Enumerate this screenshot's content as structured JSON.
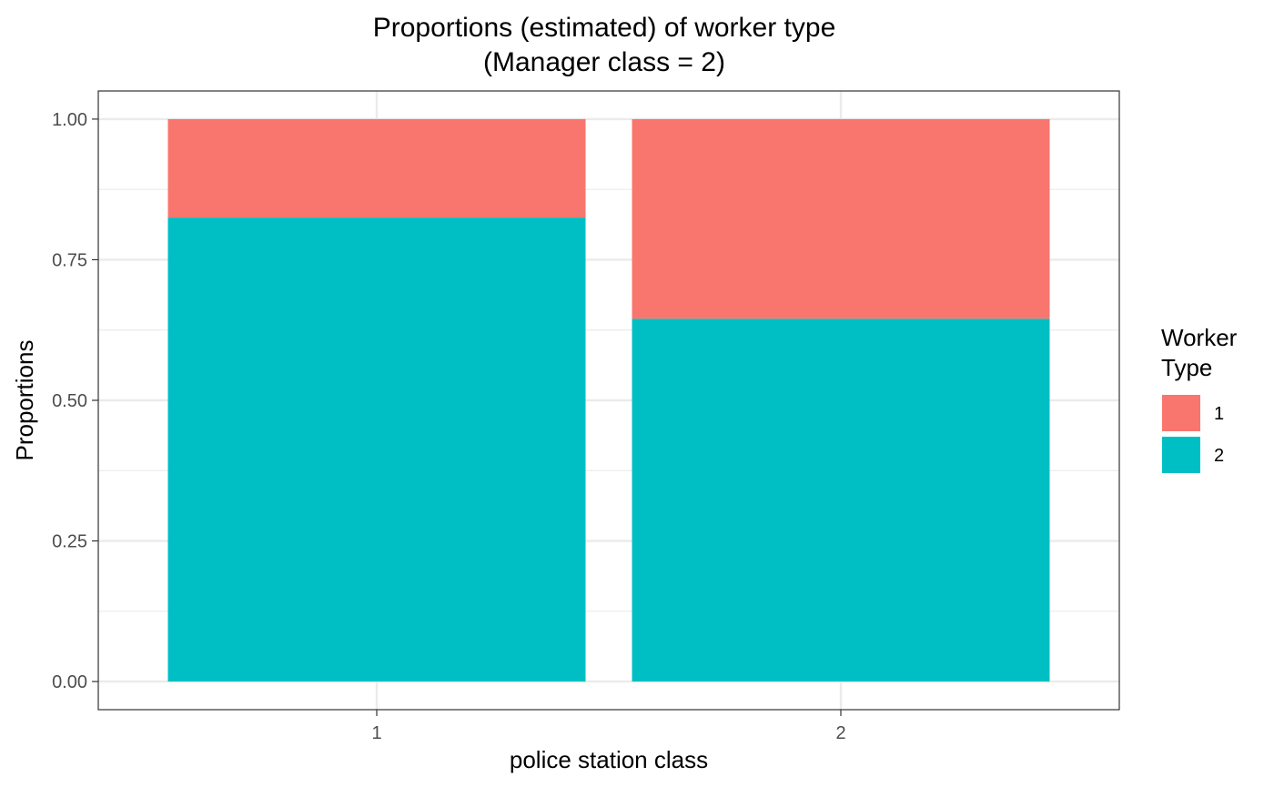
{
  "chart_data": {
    "type": "bar",
    "stacked": true,
    "title": [
      "Proportions (estimated) of worker type",
      "(Manager class = 2)"
    ],
    "xlabel": "police station class",
    "ylabel": "Proportions",
    "categories": [
      "1",
      "2"
    ],
    "series": [
      {
        "name": "1",
        "color": "#F8766D",
        "values": [
          0.175,
          0.355
        ]
      },
      {
        "name": "2",
        "color": "#00BFC4",
        "values": [
          0.825,
          0.645
        ]
      }
    ],
    "ylim": [
      -0.05,
      1.05
    ],
    "yticks": [
      0.0,
      0.25,
      0.5,
      0.75,
      1.0
    ],
    "ytick_labels": [
      "0.00",
      "0.25",
      "0.50",
      "0.75",
      "1.00"
    ],
    "legend": {
      "title": [
        "Worker",
        "Type"
      ],
      "position": "right"
    },
    "grid": true,
    "theme": "bw"
  }
}
